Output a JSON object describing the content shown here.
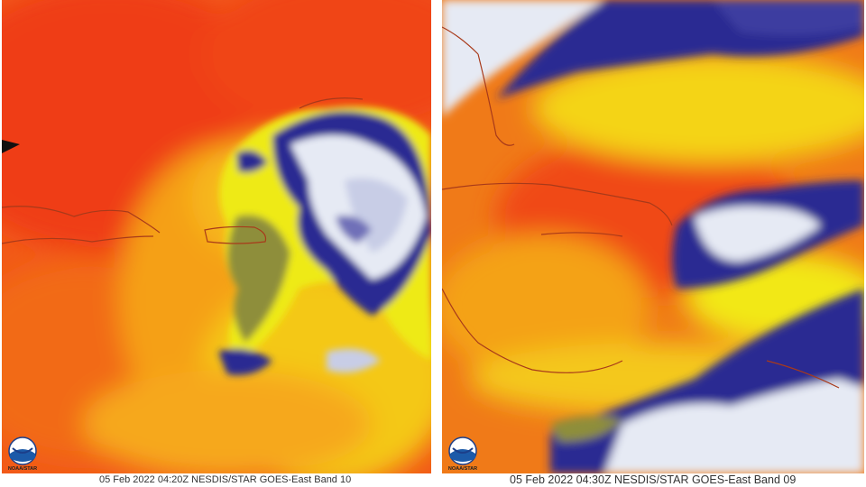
{
  "panels": [
    {
      "caption": "05 Feb 2022 04:20Z NESDIS/STAR GOES-East Band 10",
      "logo": {
        "name": "NOAA",
        "sub": "NOAA/STAR"
      }
    },
    {
      "caption": "05 Feb 2022 04:30Z NESDIS/STAR GOES-East Band 09",
      "logo": {
        "name": "NOAA",
        "sub": "NOAA/STAR"
      }
    }
  ],
  "colors": {
    "red": "#f03c10",
    "orange": "#f77a16",
    "yellow": "#f2ee10",
    "olive": "#9a9a40",
    "navy": "#20208a",
    "white": "#e8ecf4",
    "coast": "#a83a1a"
  }
}
